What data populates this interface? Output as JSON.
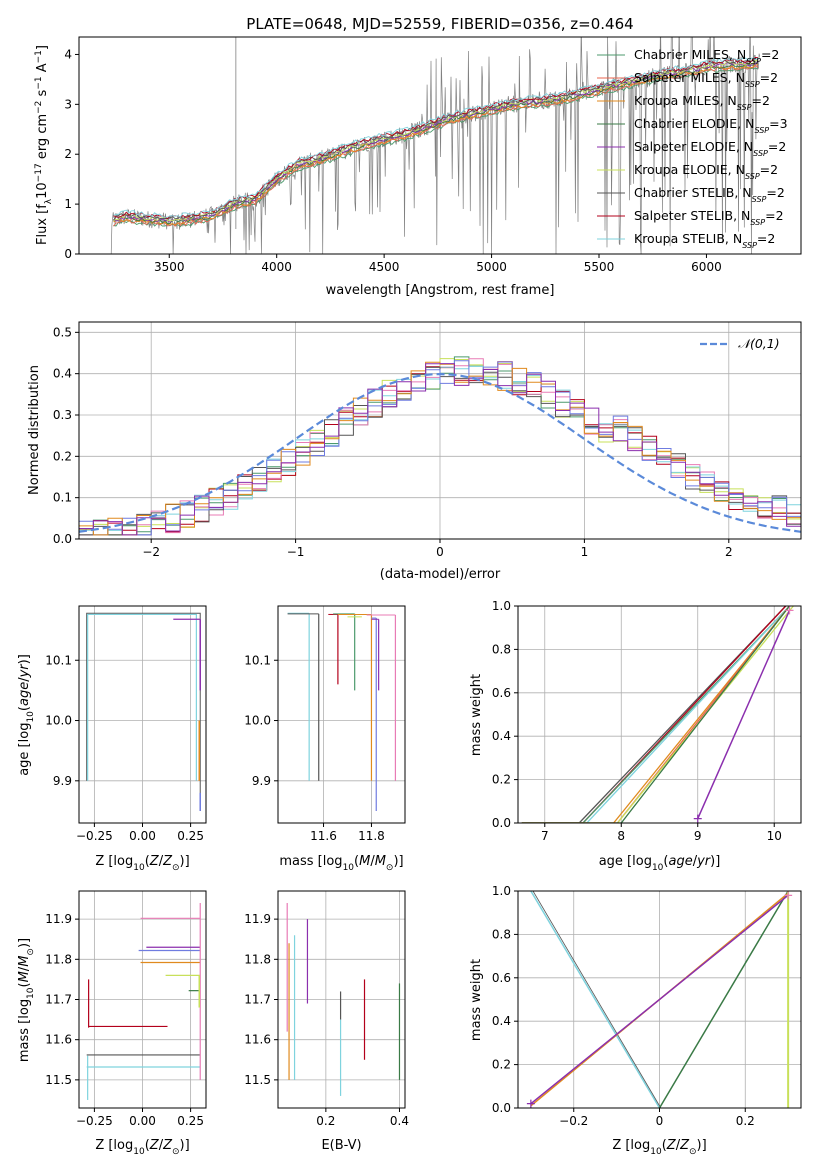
{
  "title": "PLATE=0648, MJD=52559, FIBERID=0356, z=0.464",
  "colors": {
    "chabrier_miles": "#4c9a6c",
    "salpeter_miles": "#e8644f",
    "kroupa_miles": "#e08a1e",
    "chabrier_elodie": "#3a7a46",
    "salpeter_elodie": "#8b2fae",
    "kroupa_elodie": "#c8e05a",
    "chabrier_stelib": "#555555",
    "salpeter_stelib": "#b3001b",
    "kroupa_stelib": "#7fd3de",
    "spectrum": "#808080",
    "normal": "#5b8ad9",
    "extra_pink": "#e87bb5",
    "extra_blue": "#6f7ce0"
  },
  "chart_data": [
    {
      "id": "spectrum",
      "type": "line",
      "xlabel": "wavelength [Angstrom, rest frame]",
      "ylabel": "Flux [f_λ 10^-17 erg cm^-2 s^-1 A^-1]",
      "xlim": [
        3080,
        6440
      ],
      "ylim": [
        0,
        4.35
      ],
      "xticks": [
        3500,
        4000,
        4500,
        5000,
        5500,
        6000
      ],
      "yticks": [
        0,
        1,
        2,
        3,
        4
      ],
      "legend_position": "upper-right",
      "legend": [
        {
          "key": "chabrier_miles",
          "base": "Chabrier MILES, N",
          "sub": "SSP",
          "tail": "=2"
        },
        {
          "key": "salpeter_miles",
          "base": "Salpeter MILES, N",
          "sub": "SSP",
          "tail": "=2"
        },
        {
          "key": "kroupa_miles",
          "base": "Kroupa MILES, N",
          "sub": "SSP",
          "tail": "=2"
        },
        {
          "key": "chabrier_elodie",
          "base": "Chabrier ELODIE, N",
          "sub": "SSP",
          "tail": "=3"
        },
        {
          "key": "salpeter_elodie",
          "base": "Salpeter ELODIE, N",
          "sub": "SSP",
          "tail": "=2"
        },
        {
          "key": "kroupa_elodie",
          "base": "Kroupa ELODIE, N",
          "sub": "SSP",
          "tail": "=2"
        },
        {
          "key": "chabrier_stelib",
          "base": "Chabrier STELIB, N",
          "sub": "SSP",
          "tail": "=2"
        },
        {
          "key": "salpeter_stelib",
          "base": "Salpeter STELIB, N",
          "sub": "SSP",
          "tail": "=2"
        },
        {
          "key": "kroupa_stelib",
          "base": "Kroupa STELIB, N",
          "sub": "SSP",
          "tail": "=2"
        }
      ],
      "model_envelope": {
        "x": [
          3230,
          3300,
          3400,
          3500,
          3600,
          3700,
          3800,
          3900,
          4000,
          4100,
          4200,
          4300,
          4400,
          4500,
          4600,
          4700,
          4800,
          4900,
          5000,
          5100,
          5200,
          5300,
          5400,
          5500,
          5600,
          5700,
          5800,
          5900,
          6000,
          6100,
          6200,
          6250
        ],
        "y": [
          0.65,
          0.75,
          0.7,
          0.66,
          0.7,
          0.78,
          1.0,
          1.1,
          1.5,
          1.8,
          1.9,
          2.05,
          2.2,
          2.3,
          2.4,
          2.55,
          2.7,
          2.8,
          2.9,
          3.0,
          3.05,
          3.1,
          3.2,
          3.3,
          3.4,
          3.5,
          3.6,
          3.65,
          3.75,
          3.8,
          3.8,
          3.85
        ]
      }
    },
    {
      "id": "residuals",
      "type": "histogram",
      "xlabel": "(data-model)/error",
      "ylabel": "Normed distribution",
      "xlim": [
        -2.5,
        2.5
      ],
      "ylim": [
        0,
        0.525
      ],
      "xticks": [
        -2,
        -1,
        0,
        1,
        2
      ],
      "yticks": [
        0.0,
        0.1,
        0.2,
        0.3,
        0.4,
        0.5
      ],
      "legend": "𝒩(0,1)",
      "legend_position": "upper-right",
      "bin_width": 0.1
    },
    {
      "id": "age_vs_Z",
      "type": "line",
      "xlabel": "Z [log10(Z/Z⊙)]",
      "ylabel": "age [log10(age/yr)]",
      "xlim": [
        -0.33,
        0.33
      ],
      "ylim": [
        9.83,
        10.19
      ],
      "xticks": [
        -0.25,
        0.0,
        0.25
      ],
      "yticks": [
        9.9,
        10.0,
        10.1
      ]
    },
    {
      "id": "age_vs_mass",
      "type": "line",
      "xlabel": "mass [log10(M/M⊙)]",
      "xlim": [
        11.41,
        11.94
      ],
      "ylim": [
        9.83,
        10.19
      ],
      "xticks": [
        11.6,
        11.8
      ],
      "yticks": [
        9.9,
        10.0,
        10.1
      ]
    },
    {
      "id": "mw_vs_age",
      "type": "line",
      "xlabel": "age [log10(age/yr)]",
      "ylabel": "mass weight",
      "xlim": [
        6.65,
        10.35
      ],
      "ylim": [
        0,
        1
      ],
      "xticks": [
        7,
        8,
        9,
        10
      ],
      "yticks": [
        0.0,
        0.2,
        0.4,
        0.6,
        0.8,
        1.0
      ]
    },
    {
      "id": "mass_vs_Z",
      "type": "line",
      "xlabel": "Z [log10(Z/Z⊙)]",
      "ylabel": "mass [log10(M/M⊙)]",
      "xlim": [
        -0.33,
        0.33
      ],
      "ylim": [
        11.43,
        11.97
      ],
      "xticks": [
        -0.25,
        0.0,
        0.25
      ],
      "yticks": [
        11.5,
        11.6,
        11.7,
        11.8,
        11.9
      ]
    },
    {
      "id": "mass_vs_EBV",
      "type": "line",
      "xlabel": "E(B-V)",
      "xlim": [
        0.07,
        0.415
      ],
      "ylim": [
        11.43,
        11.97
      ],
      "xticks": [
        0.2,
        0.4
      ],
      "yticks": [
        11.5,
        11.6,
        11.7,
        11.8,
        11.9
      ]
    },
    {
      "id": "mw_vs_Z",
      "type": "line",
      "xlabel": "Z [log10(Z/Z⊙)]",
      "ylabel": "mass weight",
      "xlim": [
        -0.33,
        0.33
      ],
      "ylim": [
        0,
        1
      ],
      "xticks": [
        -0.2,
        0.0,
        0.2
      ],
      "yticks": [
        0.0,
        0.2,
        0.4,
        0.6,
        0.8,
        1.0
      ]
    }
  ]
}
